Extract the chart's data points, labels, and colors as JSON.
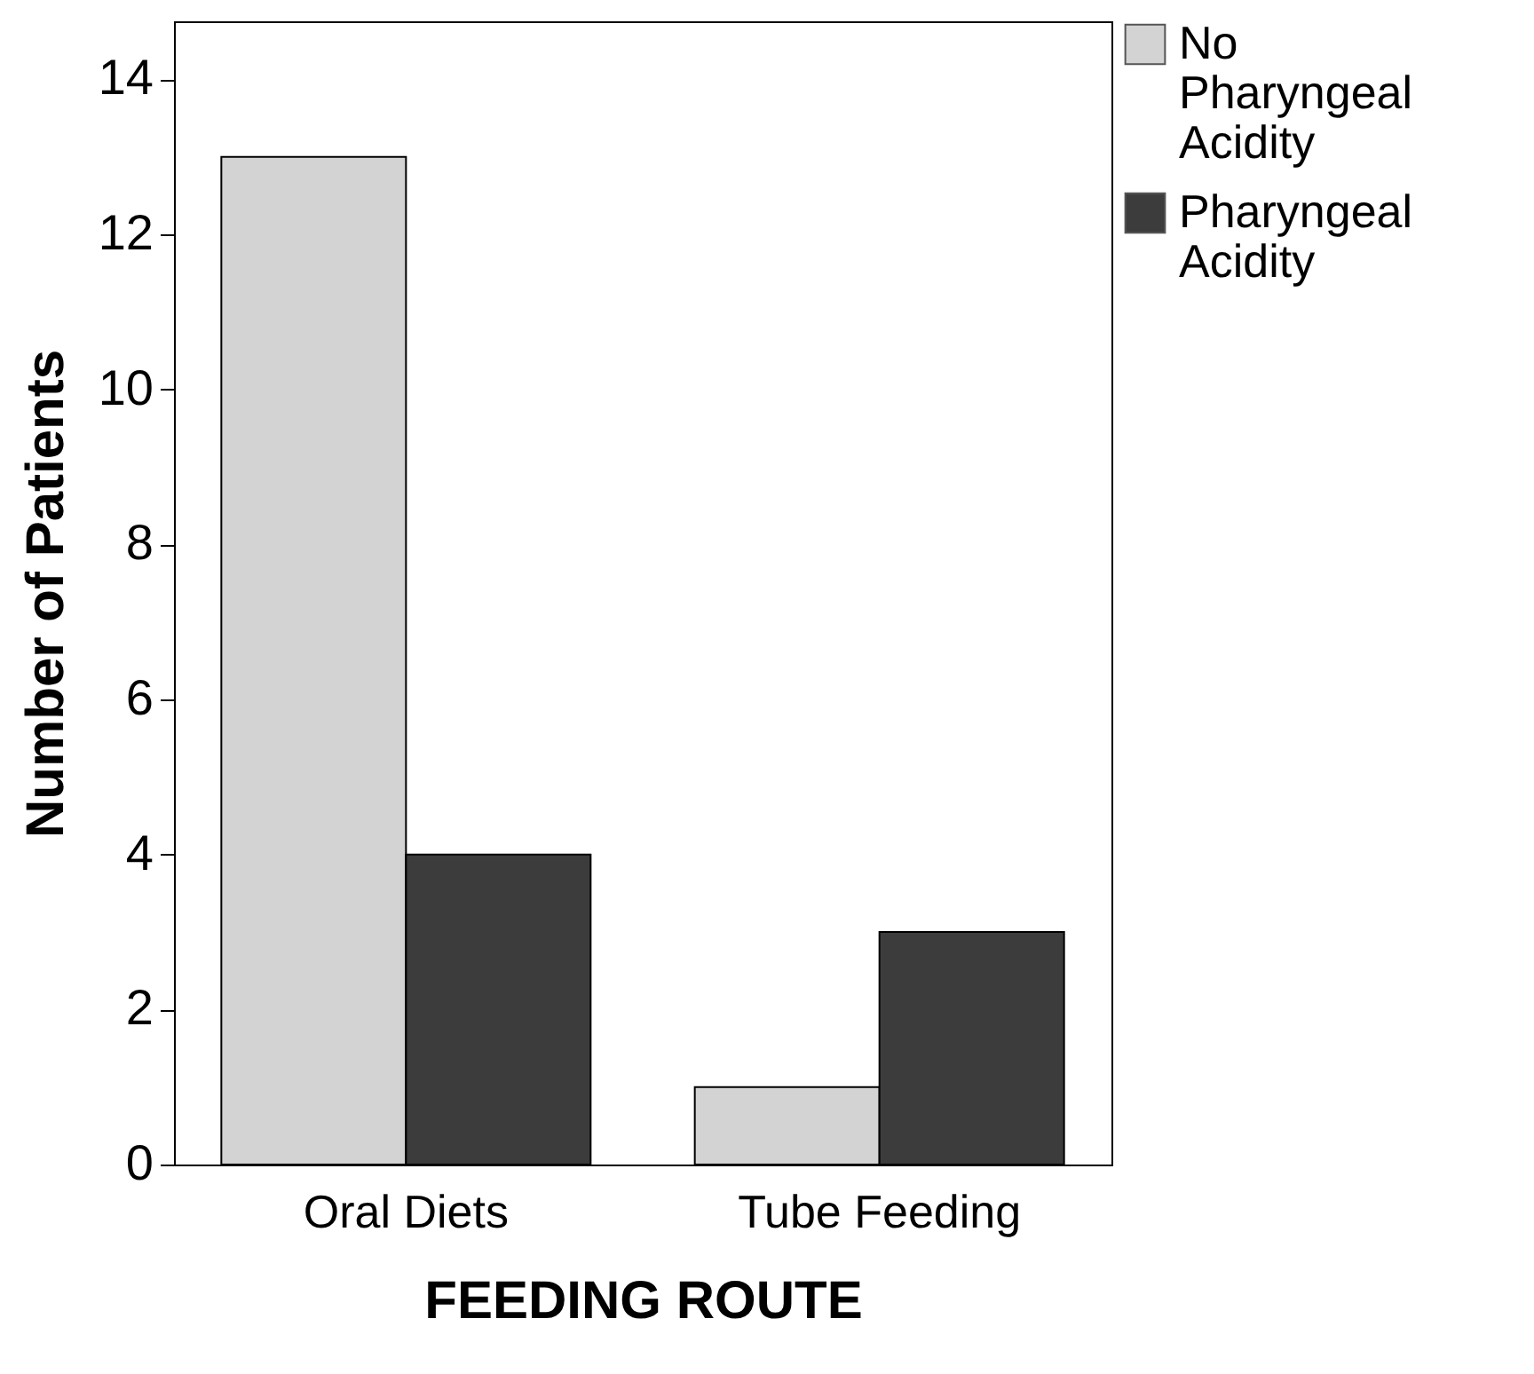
{
  "chart_data": {
    "type": "bar",
    "xlabel": "FEEDING ROUTE",
    "ylabel": "Number of Patients",
    "categories": [
      "Oral Diets",
      "Tube Feeding"
    ],
    "series": [
      {
        "name": "No Pharyngeal Acidity",
        "color": "#d3d3d3",
        "values": [
          13,
          1
        ]
      },
      {
        "name": "Pharyngeal Acidity",
        "color": "#3c3c3c",
        "values": [
          4,
          3
        ]
      }
    ],
    "ylim": [
      0,
      14.75
    ],
    "yticks": [
      0,
      2,
      4,
      6,
      8,
      10,
      12,
      14
    ],
    "grid": false,
    "legend": "right"
  }
}
